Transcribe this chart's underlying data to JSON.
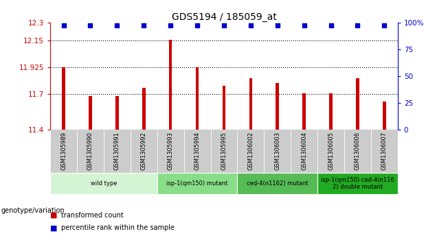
{
  "title": "GDS5194 / 185059_at",
  "samples": [
    "GSM1305989",
    "GSM1305990",
    "GSM1305991",
    "GSM1305992",
    "GSM1305993",
    "GSM1305994",
    "GSM1305995",
    "GSM1306002",
    "GSM1306003",
    "GSM1306004",
    "GSM1306005",
    "GSM1306006",
    "GSM1306007"
  ],
  "bar_values": [
    11.925,
    11.685,
    11.685,
    11.75,
    12.155,
    11.925,
    11.77,
    11.83,
    11.79,
    11.705,
    11.705,
    11.83,
    11.635
  ],
  "bar_color": "#cc0000",
  "percentile_color": "#0000cc",
  "ylim_left": [
    11.4,
    12.3
  ],
  "yticks_left": [
    11.4,
    11.7,
    11.925,
    12.15,
    12.3
  ],
  "ytick_labels_left": [
    "11.4",
    "11.7",
    "11.925",
    "12.15",
    "12.3"
  ],
  "ylim_right": [
    0,
    100
  ],
  "yticks_right": [
    0,
    25,
    50,
    75,
    100
  ],
  "ytick_labels_right": [
    "0",
    "25",
    "50",
    "75",
    "100%"
  ],
  "hlines": [
    11.7,
    11.925,
    12.15
  ],
  "genotype_groups": [
    {
      "label": "wild type",
      "start": 0,
      "end": 4,
      "color": "#d4f5d4"
    },
    {
      "label": "isp-1(qm150) mutant",
      "start": 4,
      "end": 7,
      "color": "#88dd88"
    },
    {
      "label": "ced-4(n1162) mutant",
      "start": 7,
      "end": 10,
      "color": "#55bb55"
    },
    {
      "label": "isp-1(qm150) ced-4(n116\n2) double mutant",
      "start": 10,
      "end": 13,
      "color": "#22aa22"
    }
  ],
  "legend_items": [
    {
      "label": "transformed count",
      "color": "#cc0000"
    },
    {
      "label": "percentile rank within the sample",
      "color": "#0000cc"
    }
  ],
  "background_color": "#ffffff",
  "genotype_label": "genotype/variation",
  "title_fontsize": 10,
  "tick_fontsize": 7.5,
  "bar_width": 0.12,
  "label_bg_color": "#cccccc"
}
